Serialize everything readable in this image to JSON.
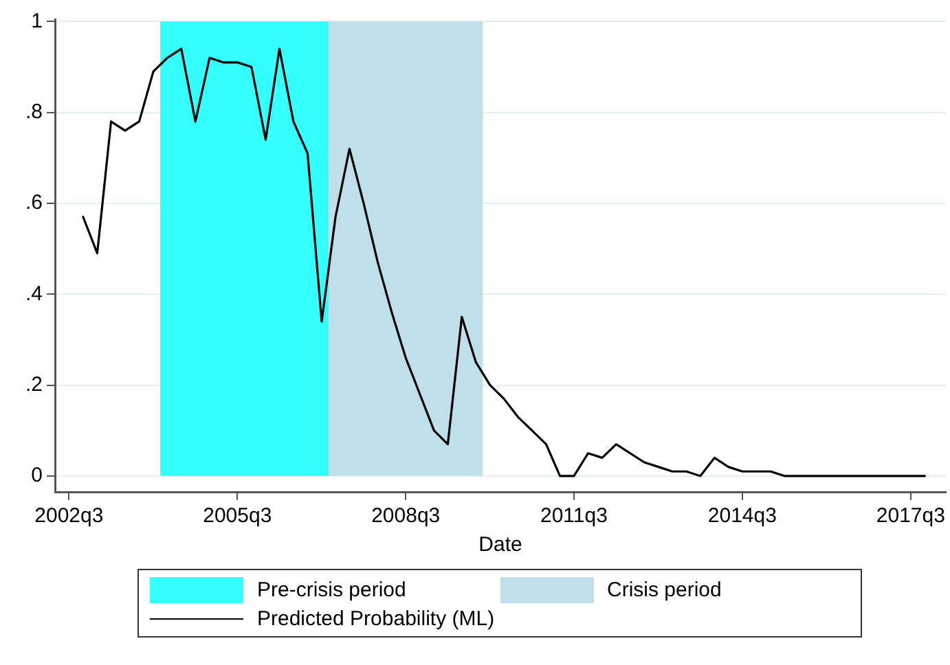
{
  "chart_data": {
    "type": "line",
    "xlabel": "Date",
    "legend": "bottom",
    "grid": "y",
    "marker": "none",
    "line_style": "solid",
    "x": [
      "2002-10",
      "2003-01",
      "2003-04",
      "2003-07",
      "2003-10",
      "2004-01",
      "2004-04",
      "2004-07",
      "2004-10",
      "2005-01",
      "2005-04",
      "2005-07",
      "2005-10",
      "2006-01",
      "2006-04",
      "2006-07",
      "2006-10",
      "2007-01",
      "2007-04",
      "2007-07",
      "2007-10",
      "2008-01",
      "2008-04",
      "2008-07",
      "2008-10",
      "2009-01",
      "2009-04",
      "2009-07",
      "2009-10",
      "2010-01",
      "2010-04",
      "2010-07",
      "2010-10",
      "2011-01",
      "2011-04",
      "2011-07",
      "2011-10",
      "2012-01",
      "2012-04",
      "2012-07",
      "2012-10",
      "2013-01",
      "2013-04",
      "2013-07",
      "2013-10",
      "2014-01",
      "2014-04",
      "2014-07",
      "2014-10",
      "2015-01",
      "2015-04",
      "2015-07",
      "2015-10",
      "2016-01",
      "2016-04",
      "2016-07",
      "2016-10",
      "2017-01",
      "2017-04",
      "2017-07",
      "2017-10"
    ],
    "series": [
      {
        "name": "Predicted Probability (ML)",
        "color": "#000000",
        "values": [
          0.57,
          0.49,
          0.78,
          0.76,
          0.78,
          0.89,
          0.92,
          0.94,
          0.78,
          0.92,
          0.91,
          0.91,
          0.9,
          0.74,
          0.94,
          0.78,
          0.71,
          0.34,
          0.57,
          0.72,
          0.6,
          0.47,
          0.36,
          0.26,
          0.18,
          0.1,
          0.07,
          0.35,
          0.25,
          0.2,
          0.17,
          0.13,
          0.1,
          0.07,
          0.0,
          0.0,
          0.05,
          0.04,
          0.07,
          0.05,
          0.03,
          0.02,
          0.01,
          0.01,
          0.0,
          0.04,
          0.02,
          0.01,
          0.01,
          0.01,
          0.0,
          0.0,
          0.0,
          0.0,
          0.0,
          0.0,
          0.0,
          0.0,
          0.0,
          0.0,
          0.0
        ]
      }
    ],
    "bands": [
      {
        "axis": "x",
        "from": "2004-02-15",
        "to": "2007-02-15",
        "label": "Pre-crisis period",
        "color": "#33ffff"
      },
      {
        "axis": "x",
        "from": "2007-02-15",
        "to": "2009-11-15",
        "label": "Crisis period",
        "color": "#bfe0e8"
      }
    ],
    "xlim": [
      "2002-04",
      "2018-02-15"
    ],
    "xticks": [
      {
        "value": "2002-07",
        "label": "2002q3"
      },
      {
        "value": "2005-07",
        "label": "2005q3"
      },
      {
        "value": "2008-07",
        "label": "2008q3"
      },
      {
        "value": "2011-07",
        "label": "2011q3"
      },
      {
        "value": "2014-07",
        "label": "2014q3"
      },
      {
        "value": "2017-07",
        "label": "2017q3"
      }
    ],
    "ylim": [
      -0.035,
      1.005
    ],
    "yticks": [
      0,
      {
        "value": 0.2,
        "label": ".2"
      },
      {
        "value": 0.4,
        "label": ".4"
      },
      {
        "value": 0.6,
        "label": ".6"
      },
      {
        "value": 0.8,
        "label": ".8"
      },
      1
    ]
  }
}
